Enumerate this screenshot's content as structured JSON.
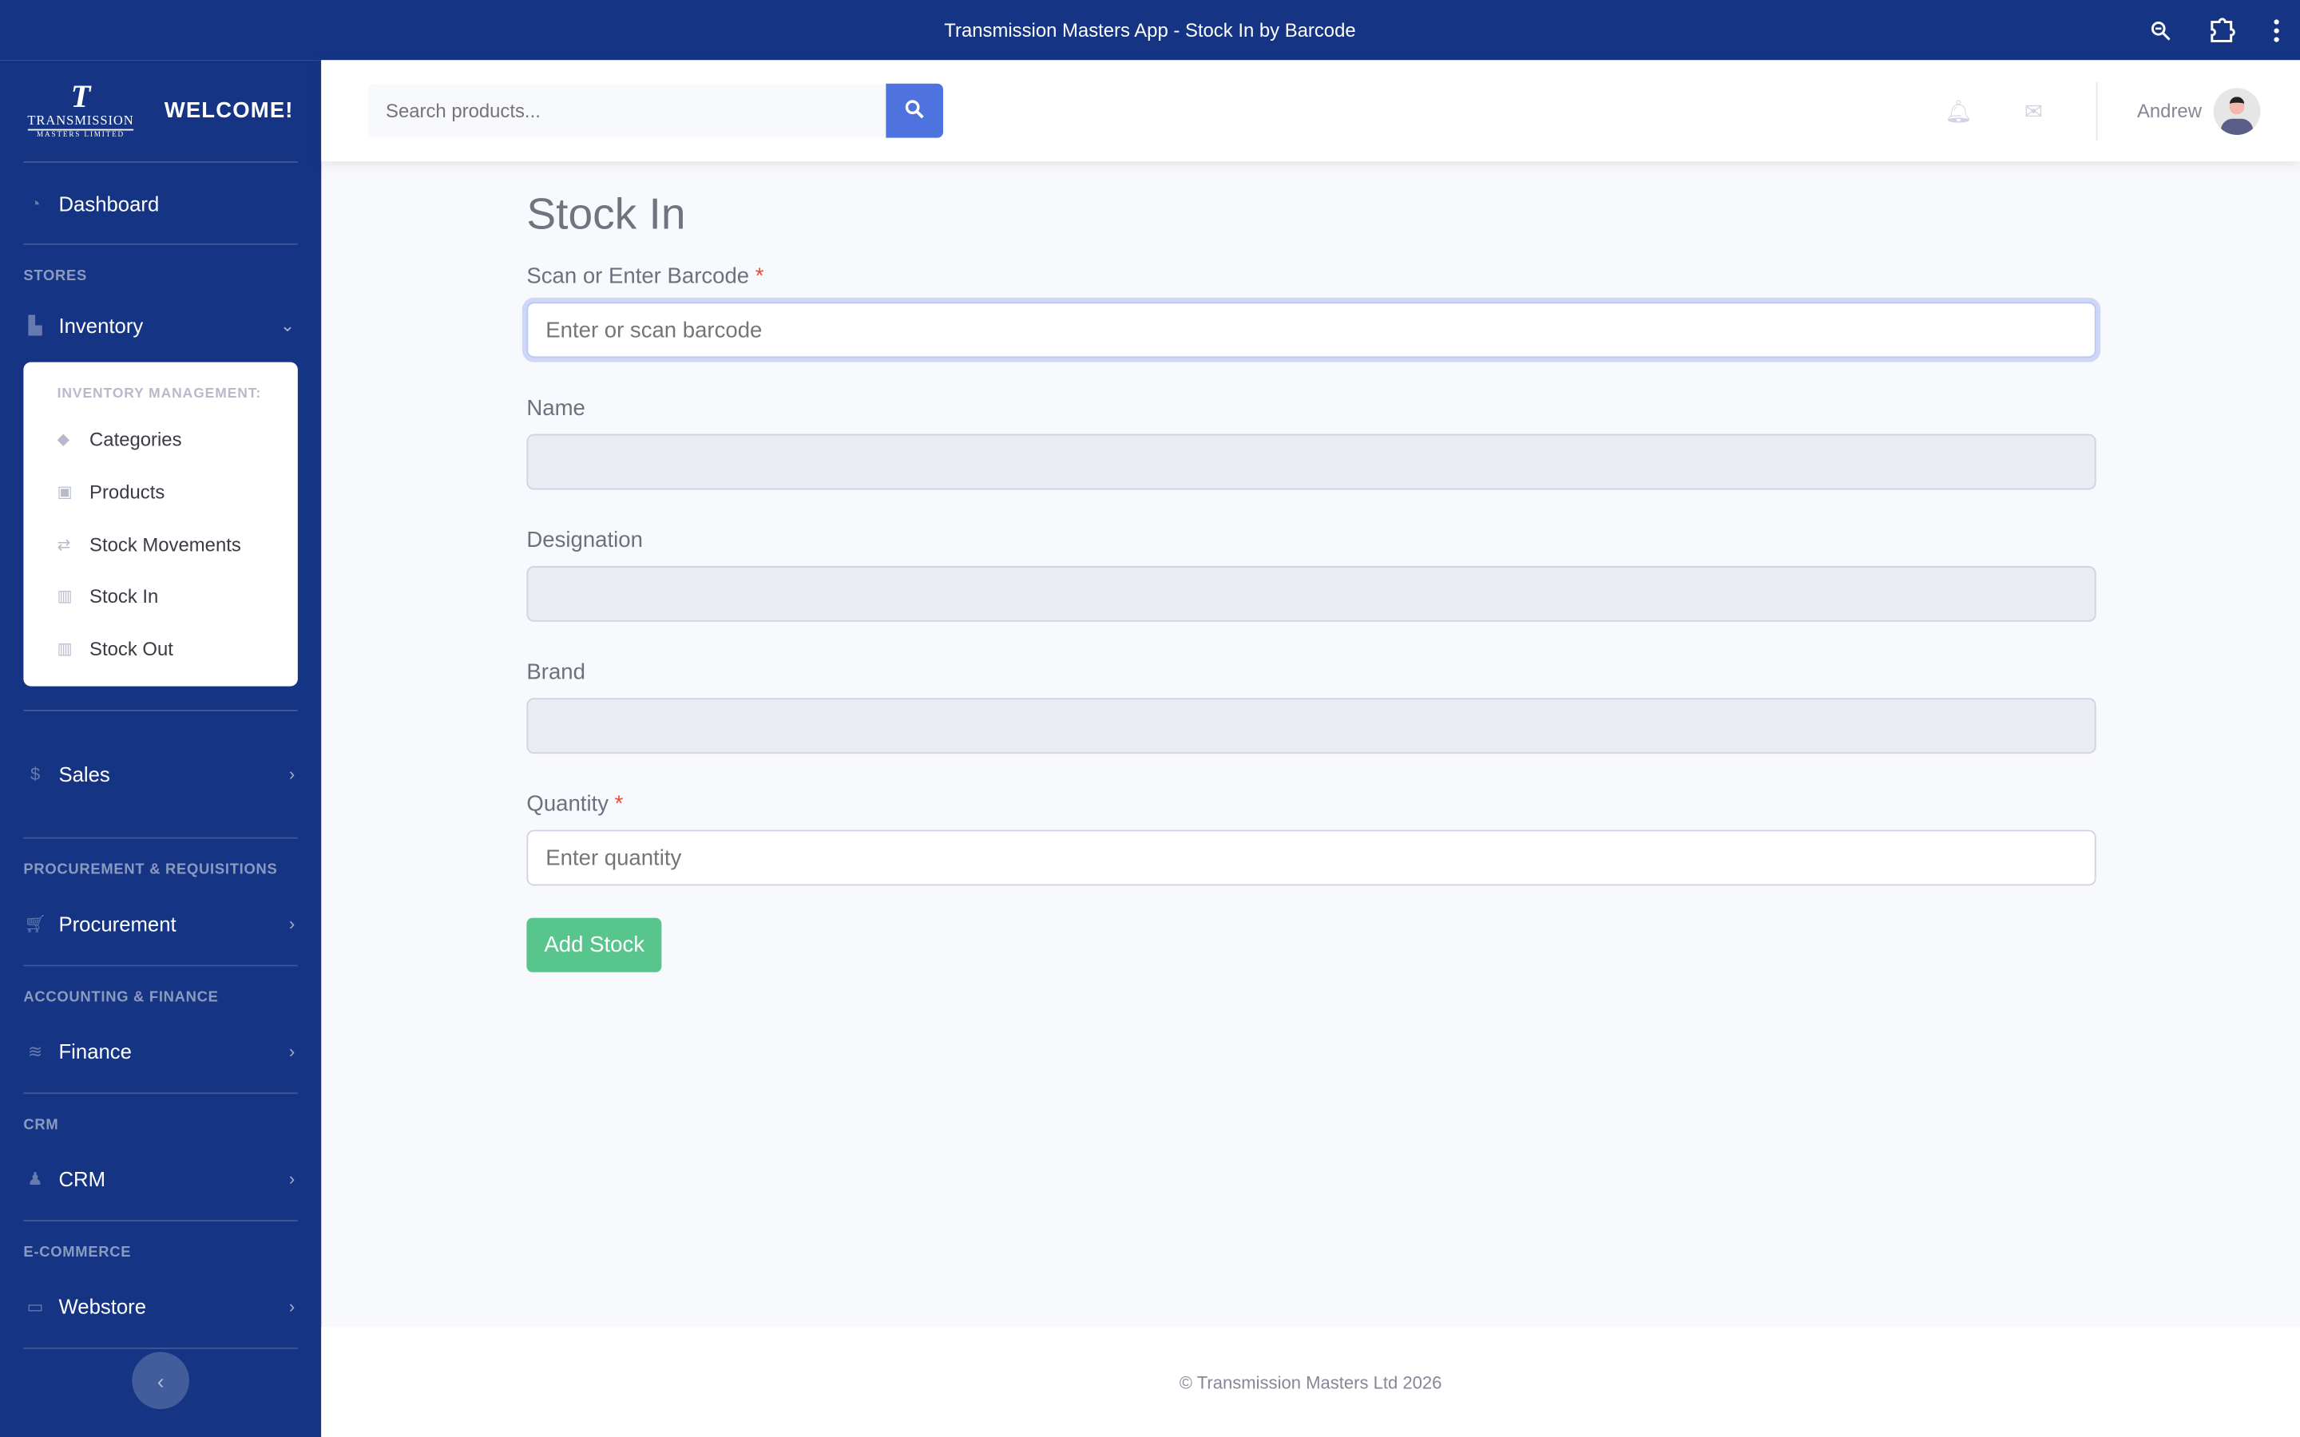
{
  "window": {
    "title": "Transmission Masters App - Stock In by Barcode"
  },
  "brand": {
    "logo_line1": "TRANSMISSION",
    "logo_line2": "MASTERS LIMITED",
    "logo_letter": "T",
    "welcome": "WELCOME!"
  },
  "sidebar": {
    "dashboard": "Dashboard",
    "stores_heading": "STORES",
    "inventory": "Inventory",
    "inventory_sub": {
      "heading": "INVENTORY MANAGEMENT:",
      "items": [
        "Categories",
        "Products",
        "Stock Movements",
        "Stock In",
        "Stock Out"
      ]
    },
    "sales": "Sales",
    "procurement_heading": "PROCUREMENT & REQUISITIONS",
    "procurement": "Procurement",
    "finance_heading": "ACCOUNTING & FINANCE",
    "finance": "Finance",
    "crm_heading": "CRM",
    "crm": "CRM",
    "ecommerce_heading": "E-COMMERCE",
    "webstore": "Webstore"
  },
  "topbar": {
    "search_placeholder": "Search products...",
    "user": "Andrew"
  },
  "form": {
    "title": "Stock In",
    "barcode_label": "Scan or Enter Barcode",
    "barcode_placeholder": "Enter or scan barcode",
    "name_label": "Name",
    "designation_label": "Designation",
    "brand_label": "Brand",
    "quantity_label": "Quantity",
    "quantity_placeholder": "Enter quantity",
    "submit": "Add Stock",
    "required_mark": "*"
  },
  "footer": {
    "text": "© Transmission Masters Ltd 2026"
  },
  "colors": {
    "sidebar": "#153483",
    "primary": "#4e73df",
    "success": "#58c58d"
  }
}
